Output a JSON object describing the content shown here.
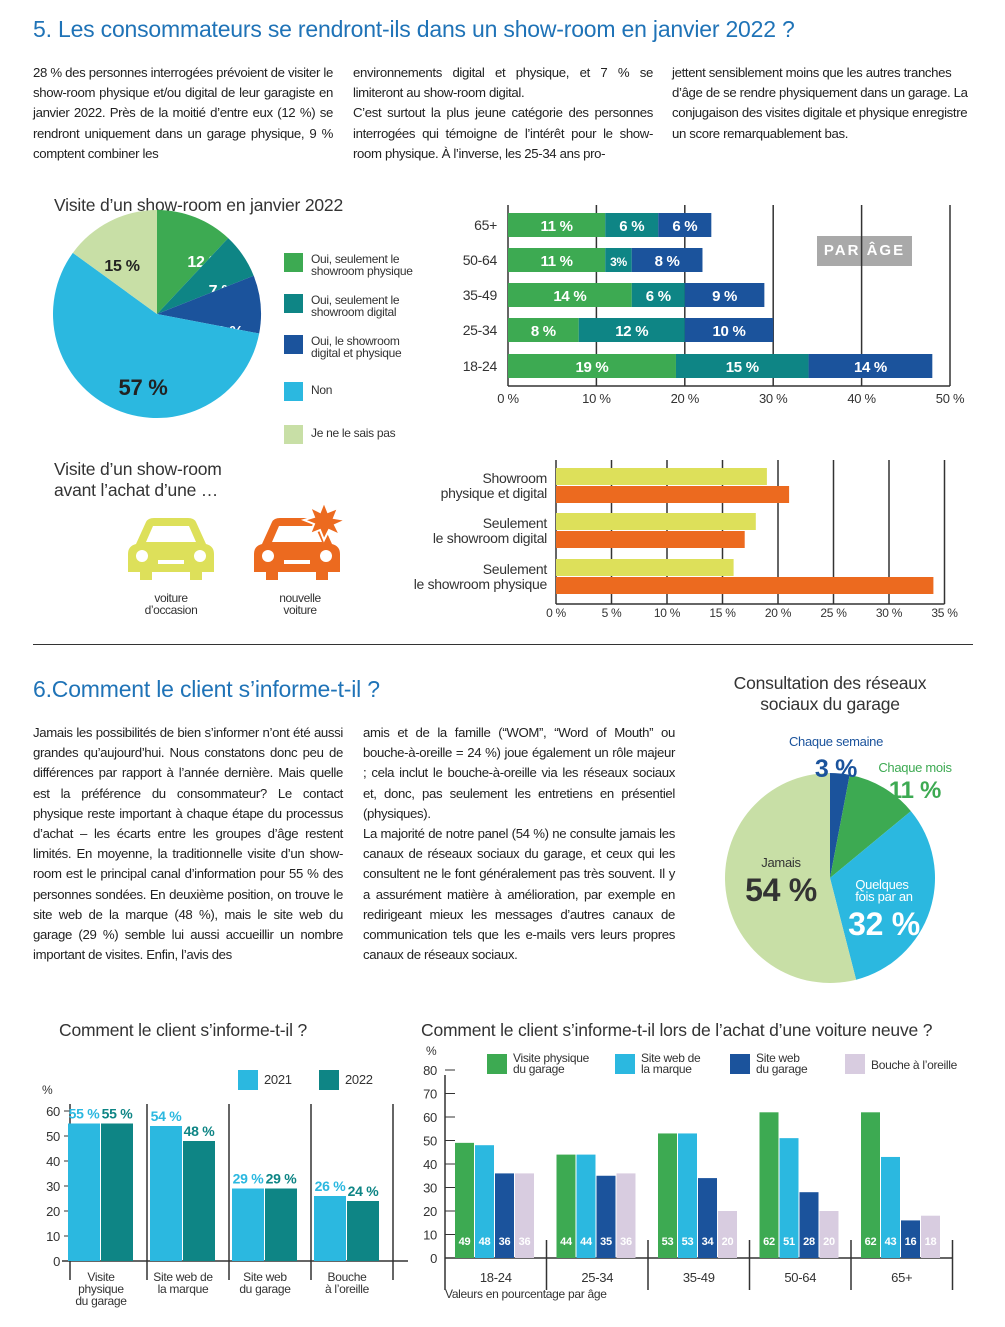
{
  "section5": {
    "title": "5. Les consommateurs se rendront-ils dans un show-room en janvier 2022 ?",
    "col1": [
      "28 % des personnes interrogées prévoient de visiter le show-room physique et/ou digital de leur garagiste en janvier 2022. Près de la moitié d’entre eux (12 %) se rendront uniquement dans un garage physique, 9 % comptent combiner les"
    ],
    "col2": [
      "environnements digital et physique, et 7 % se limiteront au show-room digital.",
      "C’est surtout la plus jeune catégorie des personnes interrogées qui témoigne de l’intérêt pour le show-room physique. À l’inverse, les 25-34 ans pro-"
    ],
    "col3": [
      "jettent sensiblement moins que les autres tranches d’âge de se rendre physiquement dans un garage. La conjugaison des visites digitale et physique enregistre un score remarquablement bas."
    ],
    "cars_title": [
      "Visite d’un show-room",
      "avant l’achat d’une …"
    ],
    "car_used_label": [
      "voiture",
      "d’occasion"
    ],
    "car_new_label": [
      "nouvelle",
      "voiture"
    ],
    "par_age": "PAR ÂGE"
  },
  "section6": {
    "title": "6.Comment le client s’informe-t-il ?",
    "col1": [
      "Jamais les possibilités de bien s’informer n’ont été aussi grandes qu’aujourd’hui. Nous constatons donc peu de différences par rapport à l’année dernière. Mais quelle est la préférence du consommateur? Le contact physique reste important à chaque étape du processus d’achat – les écarts entre les groupes d’âge restent limités. En moyenne, la traditionnelle visite d’un show-room est le principal canal d’information pour 55 % des personnes sondées. En deuxième position, on trouve le site web de la marque (48 %), mais le site web du garage (29 %) semble lui aussi accueillir un nombre important de visites. Enfin, l’avis des"
    ],
    "col2": [
      "amis et de la famille (“WOM”, “Word of Mouth” ou bouche-à-oreille = 24 %) joue également un rôle majeur ; cela inclut le bouche-à-oreille via les réseaux sociaux et, donc, pas seulement les entretiens en présentiel (physiques).",
      "La majorité de notre panel (54 %) ne consulte jamais les canaux de réseaux sociaux du garage, et ceux qui les consultent ne le font généralement pas très souvent. Il y a assurément matière à amélioration, par exemple en redirigeant mieux les messages d’autres canaux de communication tels que les e-mails vers leurs propres canaux de réseaux sociaux."
    ]
  },
  "colors": {
    "green": "#3daa52",
    "teal": "#0e8585",
    "navy": "#1b539c",
    "cyan": "#2bb8e0",
    "lightgreen": "#c8dfa6",
    "lilac": "#d8cce0",
    "yellow": "#dde05a",
    "orange": "#ec6a1f",
    "title_blue": "#1f73b7"
  },
  "chart_data": [
    {
      "type": "pie",
      "title": "Visite d’un show-room en janvier 2022",
      "slices": [
        {
          "label": "Oui, seulement le showroom physique",
          "lines": [
            "Oui, seulement le",
            "showroom physique"
          ],
          "value": 12,
          "display": "12 %",
          "color": "#3daa52"
        },
        {
          "label": "Oui, seulement le showroom digital",
          "lines": [
            "Oui, seulement le",
            "showroom digital"
          ],
          "value": 7,
          "display": "7 %",
          "color": "#0e8585"
        },
        {
          "label": "Oui, le showroom digital et physique",
          "lines": [
            "Oui, le showroom",
            "digital et physique"
          ],
          "value": 9,
          "display": "9 %",
          "color": "#1b539c"
        },
        {
          "label": "Non",
          "lines": [
            "Non"
          ],
          "value": 57,
          "display": "57 %",
          "color": "#2bb8e0"
        },
        {
          "label": "Je ne le sais pas",
          "lines": [
            "Je ne le sais pas"
          ],
          "value": 15,
          "display": "15 %",
          "color": "#c8dfa6"
        }
      ]
    },
    {
      "type": "bar",
      "orientation": "horizontal-stacked",
      "title": "PAR ÂGE",
      "categories": [
        "65+",
        "50-64",
        "35-49",
        "25-34",
        "18-24"
      ],
      "series": [
        {
          "name": "Oui, seulement le showroom physique",
          "values": [
            11,
            11,
            14,
            8,
            19
          ],
          "color": "#3daa52"
        },
        {
          "name": "Oui, seulement le showroom digital",
          "values": [
            6,
            3,
            6,
            12,
            15
          ],
          "color": "#0e8585"
        },
        {
          "name": "Oui, le showroom digital et physique",
          "values": [
            6,
            8,
            9,
            10,
            14
          ],
          "color": "#1b539c"
        }
      ],
      "xticks": [
        0,
        10,
        20,
        30,
        40,
        50
      ],
      "xlim": [
        0,
        50
      ],
      "grid": true
    },
    {
      "type": "bar",
      "orientation": "horizontal-grouped",
      "title": "Visite d’un show-room avant l’achat d’une …",
      "categories": [
        [
          "Showroom",
          "physique et digital"
        ],
        [
          "Seulement",
          "le showroom digital"
        ],
        [
          "Seulement",
          "le showroom physique"
        ]
      ],
      "series": [
        {
          "name": "voiture d’occasion",
          "values": [
            19,
            18,
            16
          ],
          "color": "#dde05a"
        },
        {
          "name": "nouvelle voiture",
          "values": [
            21,
            17,
            34
          ],
          "color": "#ec6a1f"
        }
      ],
      "xticks": [
        0,
        5,
        10,
        15,
        20,
        25,
        30,
        35
      ],
      "xlim": [
        0,
        35
      ],
      "grid": true
    },
    {
      "type": "pie",
      "title": [
        "Consultation des réseaux",
        "sociaux du garage"
      ],
      "slices": [
        {
          "label": "Chaque semaine",
          "value": 3,
          "display": "3 %",
          "color": "#1b539c"
        },
        {
          "label": "Chaque mois",
          "value": 11,
          "display": "11 %",
          "color": "#3daa52"
        },
        {
          "label": "Quelques fois par an",
          "lines": [
            "Quelques",
            "fois par an"
          ],
          "value": 32,
          "display": "32 %",
          "color": "#2bb8e0"
        },
        {
          "label": "Jamais",
          "value": 54,
          "display": "54 %",
          "color": "#c8dfa6"
        }
      ]
    },
    {
      "type": "bar",
      "title": "Comment le client s’informe-t-il ?",
      "ylabel": "%",
      "categories": [
        [
          "Visite",
          "physique",
          "du garage"
        ],
        [
          "Site web de",
          "la marque"
        ],
        [
          "Site web",
          "du garage"
        ],
        [
          "Bouche",
          "à l’oreille"
        ]
      ],
      "series": [
        {
          "name": "2021",
          "values": [
            55,
            54,
            29,
            26
          ],
          "color": "#2bb8e0"
        },
        {
          "name": "2022",
          "values": [
            55,
            48,
            29,
            24
          ],
          "color": "#0e8585"
        }
      ],
      "yticks": [
        0,
        10,
        20,
        30,
        40,
        50,
        60
      ],
      "ylim": [
        0,
        60
      ],
      "legend": "top-right"
    },
    {
      "type": "bar",
      "title": "Comment le client s’informe-t-il lors de l’achat d’une voiture neuve ?",
      "ylabel": "%",
      "xlabel": "Valeurs en pourcentage par âge",
      "categories": [
        "18-24",
        "25-34",
        "35-49",
        "50-64",
        "65+"
      ],
      "series": [
        {
          "name": "Visite physique du garage",
          "lines": [
            "Visite physique",
            "du garage"
          ],
          "values": [
            49,
            44,
            53,
            62,
            62
          ],
          "color": "#3daa52"
        },
        {
          "name": "Site web de la marque",
          "lines": [
            "Site web de",
            "la marque"
          ],
          "values": [
            48,
            44,
            53,
            51,
            43
          ],
          "color": "#2bb8e0"
        },
        {
          "name": "Site web du garage",
          "lines": [
            "Site web",
            "du garage"
          ],
          "values": [
            36,
            35,
            34,
            28,
            16
          ],
          "color": "#1b539c"
        },
        {
          "name": "Bouche à l’oreille",
          "lines": [
            "Bouche à l’oreille"
          ],
          "values": [
            36,
            36,
            20,
            20,
            18
          ],
          "color": "#d8cce0"
        }
      ],
      "yticks": [
        0,
        10,
        20,
        30,
        40,
        50,
        60,
        70,
        80
      ],
      "ylim": [
        0,
        80
      ],
      "legend": "top"
    }
  ]
}
